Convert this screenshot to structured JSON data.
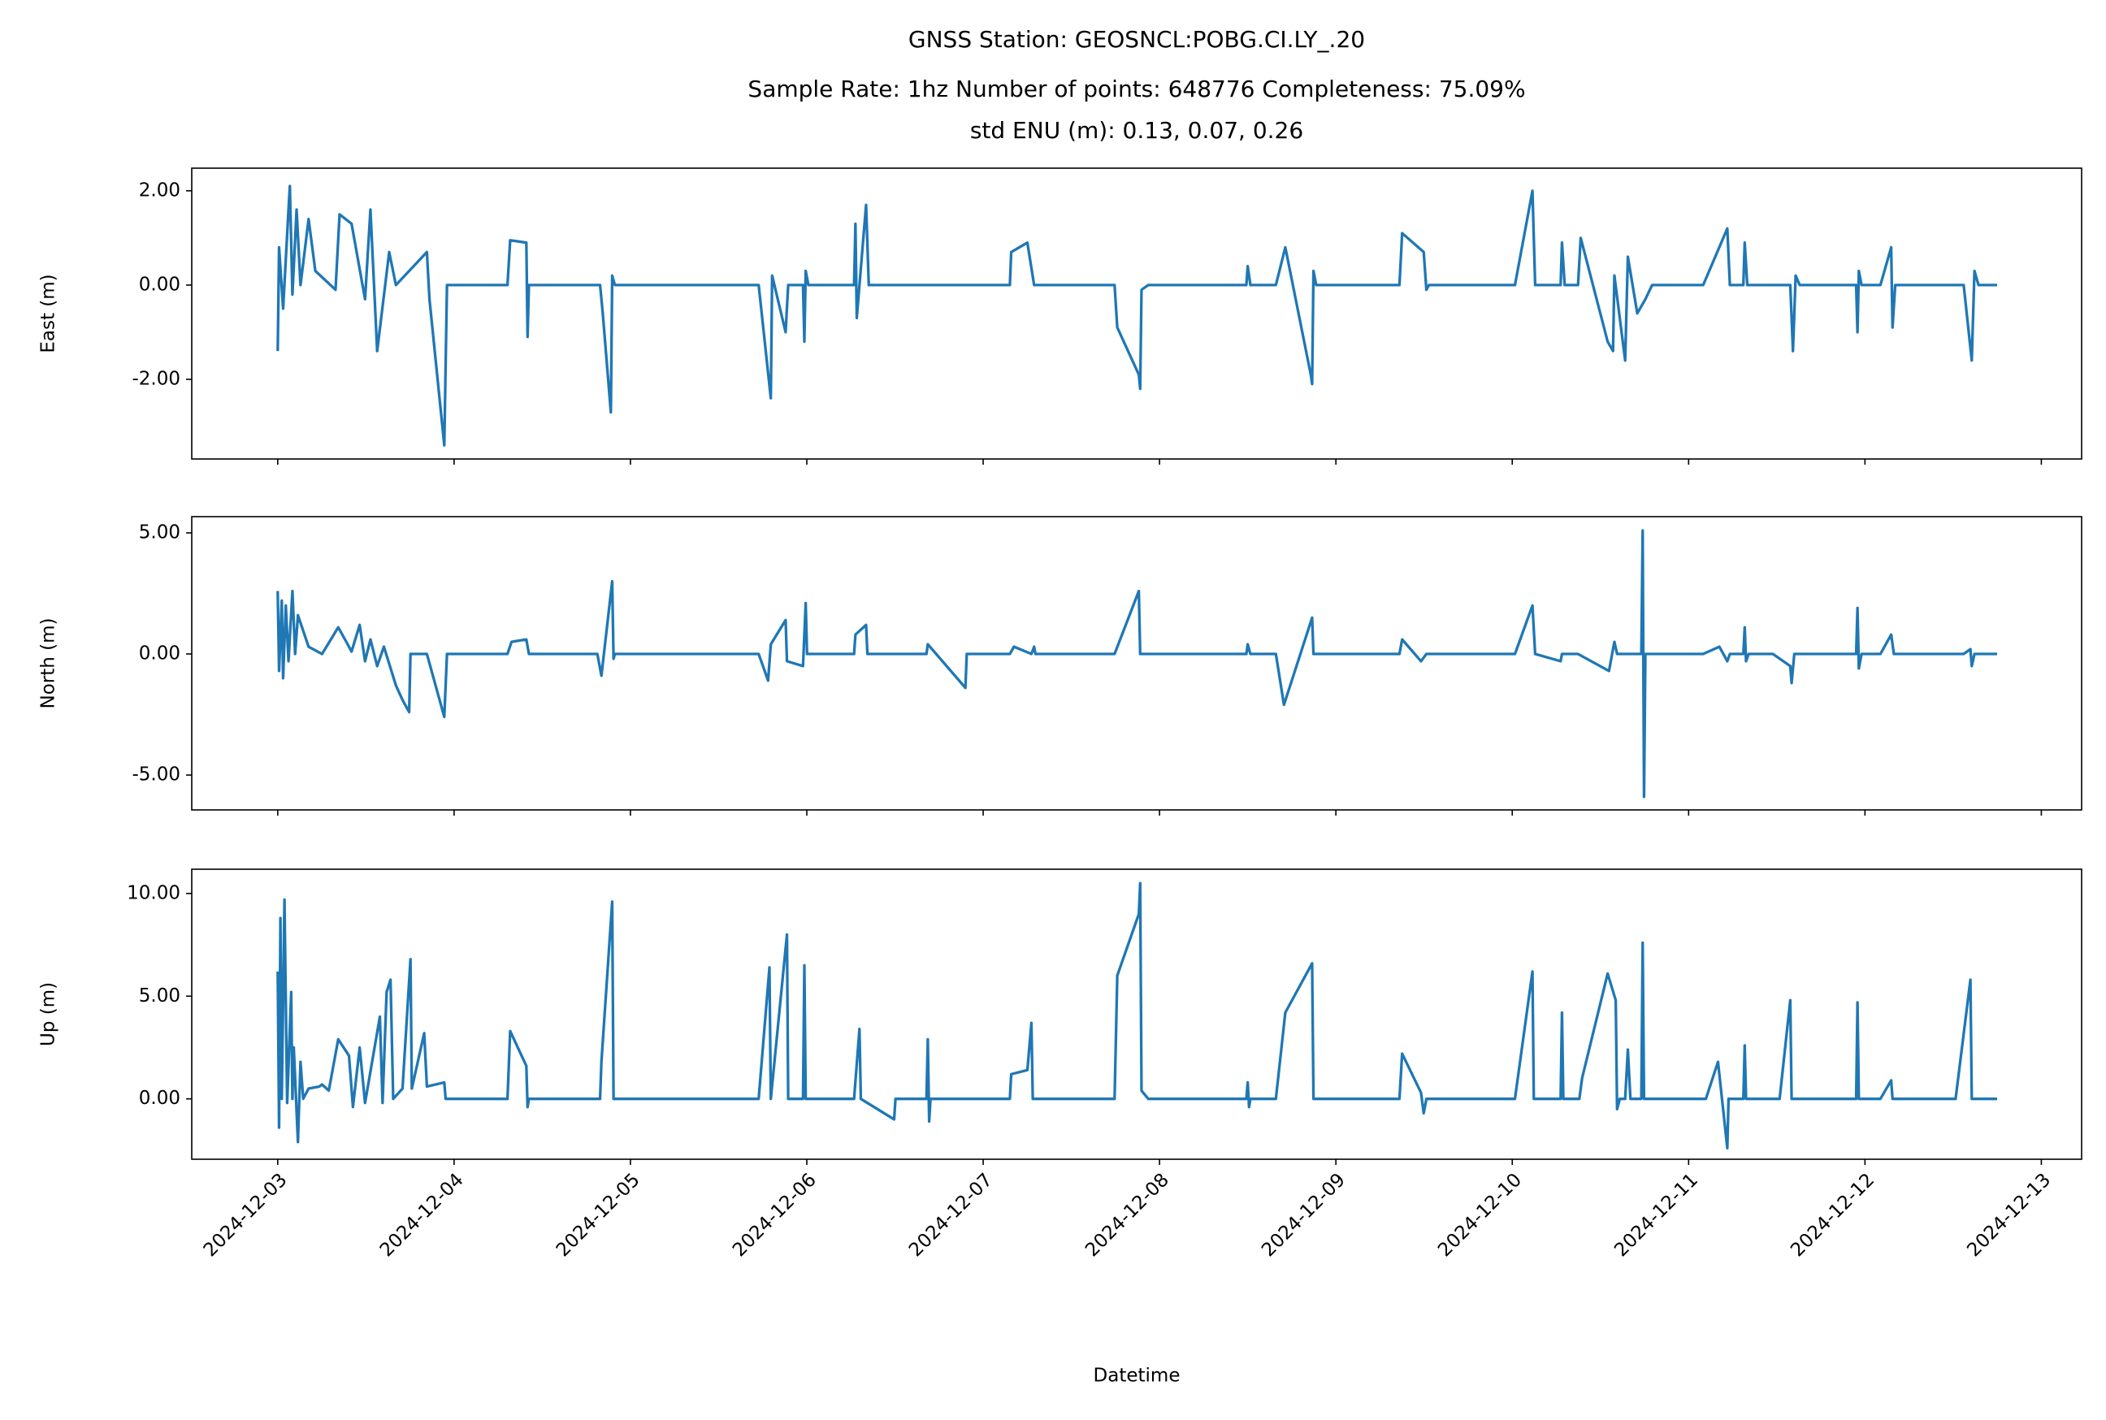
{
  "chart_data": [
    {
      "type": "line",
      "title": "GNSS Station: GEOSNCL:POBG.CI.LY_.20",
      "subtitle": [
        "Sample Rate: 1hz   Number of points: 648776    Completeness:  75.09%",
        "std ENU (m):  0.13, 0.07, 0.26"
      ],
      "ylabel": "East (m)",
      "color": "#1f77b4",
      "xlim": [
        "2024-12-02T12:18",
        "2024-12-13T05:29"
      ],
      "ylim": [
        -3.69,
        2.48
      ],
      "yticks": [
        {
          "value": 2,
          "label": "2.00"
        },
        {
          "value": 0,
          "label": "0.00"
        },
        {
          "value": -2,
          "label": "-2.00"
        }
      ],
      "x": [
        "2024-12-03T00:00",
        "2024-12-03T00:11",
        "2024-12-03T00:44",
        "2024-12-03T01:28",
        "2024-12-03T01:39",
        "2024-12-03T02:00",
        "2024-12-03T02:34",
        "2024-12-03T03:06",
        "2024-12-03T04:12",
        "2024-12-03T05:07",
        "2024-12-03T07:52",
        "2024-12-03T08:25",
        "2024-12-03T10:03",
        "2024-12-03T11:53",
        "2024-12-03T12:37",
        "2024-12-03T13:32",
        "2024-12-03T15:10",
        "2024-12-03T16:05",
        "2024-12-03T20:18",
        "2024-12-03T20:39",
        "2024-12-03T22:40",
        "2024-12-03T23:02",
        "2024-12-04T07:16",
        "2024-12-04T07:38",
        "2024-12-04T09:50",
        "2024-12-04T10:00",
        "2024-12-04T10:11",
        "2024-12-04T19:52",
        "2024-12-04T20:14",
        "2024-12-04T21:20",
        "2024-12-04T21:31",
        "2024-12-04T21:53",
        "2024-12-05T17:27",
        "2024-12-05T19:06",
        "2024-12-05T19:17",
        "2024-12-05T21:07",
        "2024-12-05T21:28",
        "2024-12-05T23:29",
        "2024-12-05T23:40",
        "2024-12-05T23:51",
        "2024-12-06T00:13",
        "2024-12-06T06:26",
        "2024-12-06T06:37",
        "2024-12-06T06:48",
        "2024-12-06T07:10",
        "2024-12-06T08:04",
        "2024-12-06T08:26",
        "2024-12-07T03:38",
        "2024-12-07T03:49",
        "2024-12-07T06:01",
        "2024-12-07T06:56",
        "2024-12-07T17:53",
        "2024-12-07T18:15",
        "2024-12-07T21:11",
        "2024-12-07T21:22",
        "2024-12-07T21:33",
        "2024-12-07T22:28",
        "2024-12-08T11:49",
        "2024-12-08T12:00",
        "2024-12-08T12:22",
        "2024-12-08T15:50",
        "2024-12-08T17:07",
        "2024-12-08T20:35",
        "2024-12-08T20:46",
        "2024-12-08T20:57",
        "2024-12-08T21:19",
        "2024-12-09T08:39",
        "2024-12-09T09:01",
        "2024-12-09T11:57",
        "2024-12-09T12:19",
        "2024-12-09T12:40",
        "2024-12-10T00:22",
        "2024-12-10T02:45",
        "2024-12-10T03:07",
        "2024-12-10T06:35",
        "2024-12-10T06:46",
        "2024-12-10T07:08",
        "2024-12-10T08:57",
        "2024-12-10T09:19",
        "2024-12-10T12:59",
        "2024-12-10T13:43",
        "2024-12-10T13:54",
        "2024-12-10T15:22",
        "2024-12-10T15:44",
        "2024-12-10T17:01",
        "2024-12-10T18:07",
        "2024-12-10T19:02",
        "2024-12-11T01:59",
        "2024-12-11T05:16",
        "2024-12-11T05:37",
        "2024-12-11T07:27",
        "2024-12-11T07:38",
        "2024-12-11T07:59",
        "2024-12-11T13:50",
        "2024-12-11T14:12",
        "2024-12-11T14:34",
        "2024-12-11T15:07",
        "2024-12-11T22:48",
        "2024-12-11T22:59",
        "2024-12-11T23:10",
        "2024-12-11T23:32",
        "2024-12-12T02:06",
        "2024-12-12T03:34",
        "2024-12-12T03:45",
        "2024-12-12T04:07",
        "2024-12-12T13:26",
        "2024-12-12T14:32",
        "2024-12-12T14:54",
        "2024-12-12T15:27",
        "2024-12-12T17:59"
      ],
      "values": [
        -1.4,
        0.8,
        -0.5,
        1.6,
        2.1,
        -0.2,
        1.6,
        0.0,
        1.4,
        0.3,
        -0.1,
        1.5,
        1.3,
        -0.3,
        1.6,
        -1.4,
        0.7,
        0.0,
        0.7,
        -0.3,
        -3.4,
        0.0,
        0.0,
        0.95,
        0.9,
        -1.1,
        0.0,
        0.0,
        -0.6,
        -2.7,
        0.2,
        0.0,
        0.0,
        -2.4,
        0.2,
        -1.0,
        0.0,
        0.0,
        -1.2,
        0.3,
        0.0,
        0.0,
        1.3,
        -0.7,
        0.0,
        1.7,
        0.0,
        0.0,
        0.7,
        0.9,
        0.0,
        0.0,
        -0.9,
        -1.9,
        -2.2,
        -0.1,
        0.0,
        0.0,
        0.4,
        0.0,
        0.0,
        0.8,
        -1.9,
        -2.1,
        0.3,
        0.0,
        0.0,
        1.1,
        0.7,
        -0.1,
        0.0,
        0.0,
        2.0,
        0.0,
        0.0,
        0.9,
        0.0,
        0.0,
        1.0,
        -1.2,
        -1.4,
        0.2,
        -1.6,
        0.6,
        -0.6,
        -0.3,
        0.0,
        0.0,
        1.2,
        0.0,
        0.0,
        0.9,
        0.0,
        0.0,
        -1.4,
        0.2,
        0.0,
        0.0,
        -1.0,
        0.3,
        0.0,
        0.0,
        0.8,
        -0.9,
        0.0,
        0.0,
        -1.6,
        0.3,
        0.0,
        0.0
      ]
    },
    {
      "type": "line",
      "ylabel": "North (m)",
      "color": "#1f77b4",
      "xlim": [
        "2024-12-02T12:18",
        "2024-12-13T05:29"
      ],
      "ylim": [
        -6.44,
        5.67
      ],
      "yticks": [
        {
          "value": 5,
          "label": "5.00"
        },
        {
          "value": 0,
          "label": "0.00"
        },
        {
          "value": -5,
          "label": "-5.00"
        }
      ],
      "x": [
        "2024-12-03T00:00",
        "2024-12-03T00:11",
        "2024-12-03T00:33",
        "2024-12-03T00:44",
        "2024-12-03T01:06",
        "2024-12-03T01:28",
        "2024-12-03T02:00",
        "2024-12-03T02:22",
        "2024-12-03T02:45",
        "2024-12-03T04:12",
        "2024-12-03T06:02",
        "2024-12-03T08:14",
        "2024-12-03T09:20",
        "2024-12-03T10:03",
        "2024-12-03T11:09",
        "2024-12-03T11:53",
        "2024-12-03T12:37",
        "2024-12-03T13:32",
        "2024-12-03T14:27",
        "2024-12-03T16:05",
        "2024-12-03T16:59",
        "2024-12-03T17:53",
        "2024-12-03T18:04",
        "2024-12-03T20:18",
        "2024-12-03T22:40",
        "2024-12-03T23:02",
        "2024-12-04T07:16",
        "2024-12-04T07:49",
        "2024-12-04T09:50",
        "2024-12-04T10:11",
        "2024-12-04T19:30",
        "2024-12-04T20:03",
        "2024-12-04T21:31",
        "2024-12-04T21:42",
        "2024-12-04T21:53",
        "2024-12-05T17:27",
        "2024-12-05T18:44",
        "2024-12-05T19:06",
        "2024-12-05T21:07",
        "2024-12-05T21:18",
        "2024-12-05T23:29",
        "2024-12-05T23:51",
        "2024-12-06T00:02",
        "2024-12-06T06:26",
        "2024-12-06T06:37",
        "2024-12-06T08:04",
        "2024-12-06T08:15",
        "2024-12-06T16:17",
        "2024-12-06T16:28",
        "2024-12-06T21:35",
        "2024-12-06T21:46",
        "2024-12-07T03:38",
        "2024-12-07T04:11",
        "2024-12-07T06:34",
        "2024-12-07T06:56",
        "2024-12-07T07:07",
        "2024-12-07T17:53",
        "2024-12-07T21:11",
        "2024-12-07T21:22",
        "2024-12-08T11:49",
        "2024-12-08T12:00",
        "2024-12-08T12:22",
        "2024-12-08T15:50",
        "2024-12-08T16:56",
        "2024-12-08T20:46",
        "2024-12-08T20:57",
        "2024-12-09T08:39",
        "2024-12-09T09:01",
        "2024-12-09T11:35",
        "2024-12-09T12:19",
        "2024-12-10T00:22",
        "2024-12-10T02:45",
        "2024-12-10T03:07",
        "2024-12-10T06:35",
        "2024-12-10T06:46",
        "2024-12-10T08:57",
        "2024-12-10T13:10",
        "2024-12-10T13:54",
        "2024-12-10T14:16",
        "2024-12-10T17:34",
        "2024-12-10T17:45",
        "2024-12-10T17:56",
        "2024-12-10T18:07",
        "2024-12-11T01:59",
        "2024-12-11T04:11",
        "2024-12-11T05:16",
        "2024-12-11T05:37",
        "2024-12-11T07:27",
        "2024-12-11T07:38",
        "2024-12-11T07:49",
        "2024-12-11T08:10",
        "2024-12-11T11:28",
        "2024-12-11T13:50",
        "2024-12-11T14:01",
        "2024-12-11T14:23",
        "2024-12-11T22:48",
        "2024-12-11T22:59",
        "2024-12-11T23:10",
        "2024-12-11T23:32",
        "2024-12-12T02:06",
        "2024-12-12T03:34",
        "2024-12-12T03:56",
        "2024-12-12T13:26",
        "2024-12-12T14:21",
        "2024-12-12T14:32",
        "2024-12-12T14:54",
        "2024-12-12T17:59"
      ],
      "values": [
        2.6,
        -0.7,
        2.2,
        -1.0,
        2.0,
        -0.3,
        2.6,
        0.0,
        1.6,
        0.3,
        0.0,
        1.1,
        0.5,
        0.1,
        1.2,
        -0.3,
        0.6,
        -0.5,
        0.3,
        -1.3,
        -1.9,
        -2.4,
        0.0,
        0.0,
        -2.6,
        0.0,
        0.0,
        0.5,
        0.6,
        0.0,
        0.0,
        -0.9,
        3.0,
        -0.2,
        0.0,
        0.0,
        -1.1,
        0.4,
        1.4,
        -0.3,
        -0.5,
        2.1,
        0.0,
        0.0,
        0.8,
        1.2,
        0.0,
        0.0,
        0.4,
        -1.4,
        0.0,
        0.0,
        0.3,
        0.0,
        0.3,
        0.0,
        0.0,
        2.6,
        0.0,
        0.0,
        0.4,
        0.0,
        0.0,
        -2.1,
        1.5,
        0.0,
        0.0,
        0.6,
        -0.3,
        0.0,
        0.0,
        2.0,
        0.0,
        -0.3,
        0.0,
        0.0,
        -0.7,
        0.5,
        0.0,
        0.0,
        5.1,
        -5.9,
        0.0,
        0.0,
        0.3,
        -0.3,
        0.0,
        0.0,
        1.1,
        -0.3,
        0.0,
        0.0,
        -0.5,
        -1.2,
        0.0,
        0.0,
        1.9,
        -0.6,
        0.0,
        0.0,
        0.8,
        0.0,
        0.0,
        0.2,
        -0.5,
        0.0,
        0.0
      ]
    },
    {
      "type": "line",
      "ylabel": "Up (m)",
      "xlabel": "Datetime",
      "color": "#1f77b4",
      "xlim": [
        "2024-12-02T12:18",
        "2024-12-13T05:29"
      ],
      "xticks": [
        "2024-12-03",
        "2024-12-04",
        "2024-12-05",
        "2024-12-06",
        "2024-12-07",
        "2024-12-08",
        "2024-12-09",
        "2024-12-10",
        "2024-12-11",
        "2024-12-12",
        "2024-12-13"
      ],
      "ylim": [
        -2.94,
        11.18
      ],
      "yticks": [
        {
          "value": 10,
          "label": "10.00"
        },
        {
          "value": 5,
          "label": "5.00"
        },
        {
          "value": 0,
          "label": "0.00"
        }
      ],
      "x": [
        "2024-12-03T00:00",
        "2024-12-03T00:11",
        "2024-12-03T00:22",
        "2024-12-03T00:33",
        "2024-12-03T00:55",
        "2024-12-03T01:17",
        "2024-12-03T01:50",
        "2024-12-03T02:00",
        "2024-12-03T02:11",
        "2024-12-03T02:45",
        "2024-12-03T03:06",
        "2024-12-03T03:28",
        "2024-12-03T04:12",
        "2024-12-03T05:40",
        "2024-12-03T06:02",
        "2024-12-03T06:57",
        "2024-12-03T08:14",
        "2024-12-03T09:42",
        "2024-12-03T10:14",
        "2024-12-03T11:09",
        "2024-12-03T11:53",
        "2024-12-03T13:54",
        "2024-12-03T14:16",
        "2024-12-03T14:49",
        "2024-12-03T15:21",
        "2024-12-03T15:43",
        "2024-12-03T16:59",
        "2024-12-03T18:04",
        "2024-12-03T18:15",
        "2024-12-03T19:56",
        "2024-12-03T20:18",
        "2024-12-03T22:40",
        "2024-12-03T22:51",
        "2024-12-04T07:16",
        "2024-12-04T07:38",
        "2024-12-04T09:50",
        "2024-12-04T10:00",
        "2024-12-04T10:11",
        "2024-12-04T19:52",
        "2024-12-04T20:03",
        "2024-12-04T21:31",
        "2024-12-04T21:42",
        "2024-12-05T17:27",
        "2024-12-05T18:55",
        "2024-12-05T19:06",
        "2024-12-05T21:18",
        "2024-12-05T21:28",
        "2024-12-05T23:29",
        "2024-12-05T23:40",
        "2024-12-05T23:51",
        "2024-12-06T06:26",
        "2024-12-06T07:10",
        "2024-12-06T07:21",
        "2024-12-06T11:53",
        "2024-12-06T12:04",
        "2024-12-06T16:17",
        "2024-12-06T16:28",
        "2024-12-06T16:39",
        "2024-12-06T16:50",
        "2024-12-07T03:38",
        "2024-12-07T03:49",
        "2024-12-07T06:01",
        "2024-12-07T06:34",
        "2024-12-07T06:45",
        "2024-12-07T17:53",
        "2024-12-07T18:15",
        "2024-12-07T21:11",
        "2024-12-07T21:22",
        "2024-12-07T21:33",
        "2024-12-07T22:28",
        "2024-12-08T11:49",
        "2024-12-08T12:00",
        "2024-12-08T12:11",
        "2024-12-08T12:22",
        "2024-12-08T15:50",
        "2024-12-08T17:07",
        "2024-12-08T20:46",
        "2024-12-08T20:57",
        "2024-12-09T08:39",
        "2024-12-09T09:01",
        "2024-12-09T11:35",
        "2024-12-09T11:57",
        "2024-12-09T12:19",
        "2024-12-10T00:22",
        "2024-12-10T02:45",
        "2024-12-10T02:56",
        "2024-12-10T06:35",
        "2024-12-10T06:46",
        "2024-12-10T06:57",
        "2024-12-10T09:08",
        "2024-12-10T09:30",
        "2024-12-10T12:59",
        "2024-12-10T14:05",
        "2024-12-10T14:16",
        "2024-12-10T14:38",
        "2024-12-10T15:22",
        "2024-12-10T15:44",
        "2024-12-10T16:05",
        "2024-12-10T17:34",
        "2024-12-10T17:45",
        "2024-12-10T17:56",
        "2024-12-11T02:21",
        "2024-12-11T04:00",
        "2024-12-11T05:16",
        "2024-12-11T05:26",
        "2024-12-11T07:27",
        "2024-12-11T07:38",
        "2024-12-11T07:49",
        "2024-12-11T12:23",
        "2024-12-11T13:50",
        "2024-12-11T14:01",
        "2024-12-11T22:48",
        "2024-12-11T22:59",
        "2024-12-11T23:10",
        "2024-12-12T02:06",
        "2024-12-12T03:34",
        "2024-12-12T03:45",
        "2024-12-12T12:20",
        "2024-12-12T14:21",
        "2024-12-12T14:32",
        "2024-12-12T17:59"
      ],
      "values": [
        6.2,
        -1.4,
        8.8,
        0.0,
        9.7,
        -0.2,
        5.2,
        0.0,
        2.5,
        -2.1,
        1.8,
        0.0,
        0.5,
        0.6,
        0.7,
        0.4,
        2.9,
        2.1,
        -0.4,
        2.5,
        -0.2,
        4.0,
        -0.2,
        5.2,
        5.8,
        0.0,
        0.5,
        6.8,
        0.5,
        3.2,
        0.6,
        0.8,
        0.0,
        0.0,
        3.3,
        1.6,
        -0.4,
        0.0,
        0.0,
        1.8,
        9.6,
        0.0,
        0.0,
        6.4,
        0.0,
        8.0,
        0.0,
        0.0,
        6.5,
        0.0,
        0.0,
        3.4,
        0.0,
        -1.0,
        0.0,
        0.0,
        2.9,
        -1.1,
        0.0,
        0.0,
        1.2,
        1.4,
        3.7,
        0.0,
        0.0,
        6.0,
        9.0,
        10.5,
        0.4,
        0.0,
        0.0,
        0.8,
        -0.4,
        0.0,
        0.0,
        4.2,
        6.6,
        0.0,
        0.0,
        2.2,
        0.3,
        -0.7,
        0.0,
        0.0,
        6.2,
        0.0,
        0.0,
        4.2,
        0.0,
        0.0,
        1.0,
        6.1,
        4.8,
        -0.5,
        0.0,
        0.0,
        2.4,
        0.0,
        0.0,
        7.6,
        0.0,
        0.0,
        1.8,
        -2.4,
        0.0,
        0.0,
        2.6,
        0.0,
        0.0,
        4.8,
        0.0,
        0.0,
        4.7,
        0.0,
        0.0,
        0.9,
        0.0,
        0.0,
        5.8,
        0.0,
        0.0
      ]
    }
  ]
}
